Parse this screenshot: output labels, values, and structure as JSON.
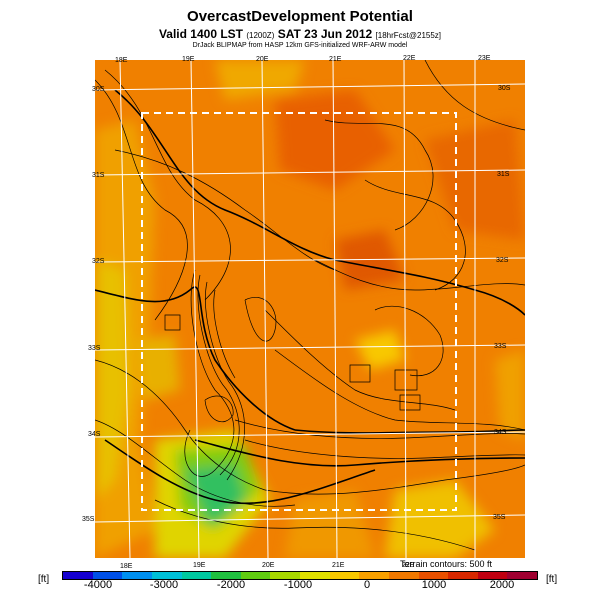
{
  "header": {
    "title": "OvercastDevelopment Potential",
    "valid_line": "Valid 1400 LST",
    "valid_detail": "(1200Z)",
    "valid_date": "SAT 23 Jun 2012",
    "forecast_tag": "[18hrFcst@2155z]",
    "credit": "DrJack BLIPMAP from HASP 12km GFS-initialized WRF-ARW model"
  },
  "map": {
    "top_lon_labels": [
      "18E",
      "19E",
      "20E",
      "21E",
      "22E",
      "23E"
    ],
    "bottom_lon_labels": [
      "18E",
      "19E",
      "20E",
      "21E",
      "22E"
    ],
    "left_lat_labels": [
      "30S",
      "31S",
      "32S",
      "33S",
      "34S",
      "35S"
    ],
    "right_lat_labels": [
      "30S",
      "31S",
      "32S",
      "33S",
      "34S",
      "35S"
    ],
    "contour_note": "Terrain contours: 500 ft"
  },
  "colorbar": {
    "unit_left": "[ft]",
    "unit_right": "[ft]",
    "ticks": [
      "-4000",
      "-3000",
      "-2000",
      "-1000",
      "0",
      "1000",
      "2000"
    ],
    "colors": [
      "#1500d0",
      "#0050e8",
      "#0090f0",
      "#00c0d8",
      "#00c8a0",
      "#20c040",
      "#60cc10",
      "#a8d800",
      "#e0e000",
      "#f8c800",
      "#f8a000",
      "#f07800",
      "#e85000",
      "#d82800",
      "#c00010",
      "#a00030"
    ]
  }
}
